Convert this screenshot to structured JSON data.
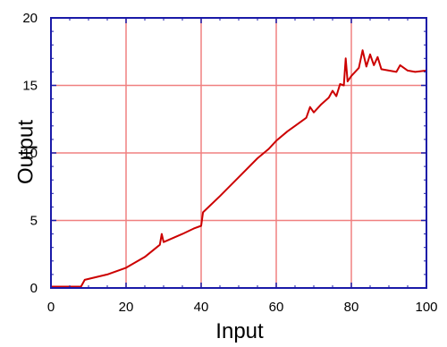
{
  "chart_data": {
    "type": "line",
    "title": "",
    "xlabel": "Input",
    "ylabel": "Output",
    "xlim": [
      0,
      100
    ],
    "ylim": [
      0,
      20
    ],
    "x_ticks": [
      0,
      20,
      40,
      60,
      80,
      100
    ],
    "y_ticks": [
      0,
      5,
      10,
      15,
      20
    ],
    "grid": true,
    "colors": {
      "grid": "#f08080",
      "frame": "#1a1aa8",
      "series": "#cc0000"
    },
    "series": [
      {
        "name": "",
        "x": [
          0,
          8,
          9,
          15,
          20,
          25,
          29,
          29.5,
          30,
          35,
          38,
          40,
          40.5,
          45,
          50,
          55,
          58,
          60,
          63,
          65,
          68,
          69,
          70,
          72,
          74,
          75,
          76,
          77,
          78,
          78.5,
          79,
          80,
          81,
          82,
          83,
          84,
          85,
          86,
          87,
          88,
          90,
          92,
          93,
          95,
          97,
          100
        ],
        "y": [
          0.1,
          0.1,
          0.6,
          1.0,
          1.5,
          2.3,
          3.2,
          4.0,
          3.4,
          4.0,
          4.4,
          4.6,
          5.6,
          6.8,
          8.2,
          9.6,
          10.3,
          10.9,
          11.6,
          12.0,
          12.6,
          13.4,
          13.0,
          13.6,
          14.1,
          14.6,
          14.2,
          15.1,
          15.0,
          17.0,
          15.3,
          15.7,
          16.0,
          16.3,
          17.6,
          16.4,
          17.3,
          16.5,
          17.1,
          16.2,
          16.1,
          16.0,
          16.5,
          16.1,
          16.0,
          16.1
        ]
      }
    ]
  }
}
